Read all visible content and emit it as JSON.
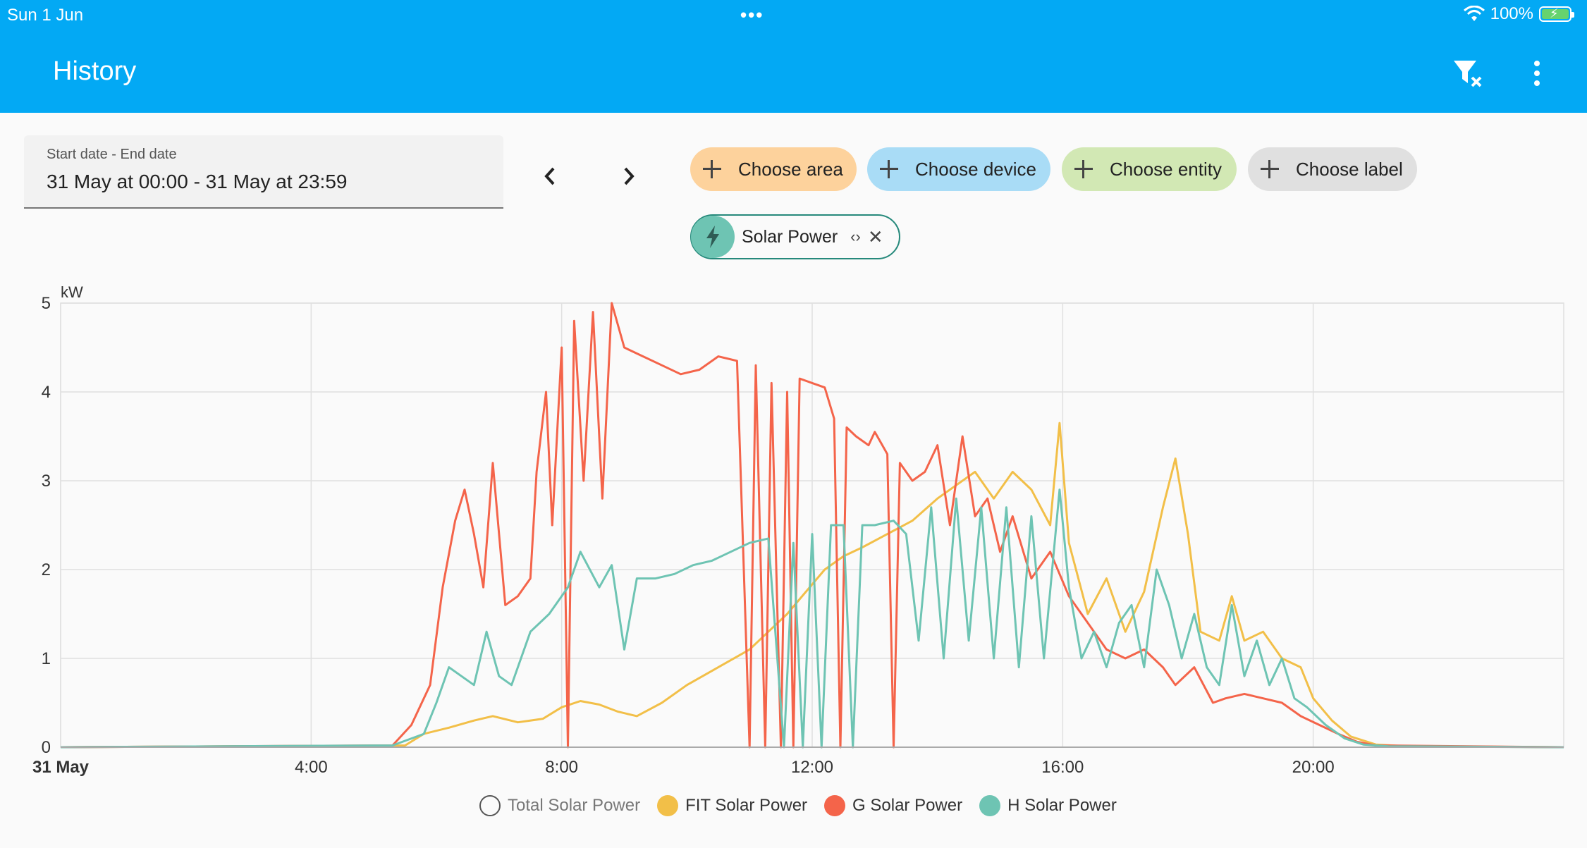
{
  "status_bar": {
    "date": "Sun 1 Jun",
    "battery_percent": "100%"
  },
  "app_bar": {
    "title": "History",
    "clear_filter_icon": "filter-remove-icon",
    "menu_icon": "dots-vertical-icon"
  },
  "date_range": {
    "label": "Start date - End date",
    "value": "31 May at 00:00 - 31 May at 23:59"
  },
  "target_pickers": [
    {
      "label": "Choose area",
      "color": "#fdd29c"
    },
    {
      "label": "Choose device",
      "color": "#a9dcf6"
    },
    {
      "label": "Choose entity",
      "color": "#d2e8b4"
    },
    {
      "label": "Choose label",
      "color": "#e0e0e0"
    }
  ],
  "selected_target": {
    "label": "Solar Power",
    "icon": "flash-icon"
  },
  "chart_data": {
    "type": "line",
    "unit": "kW",
    "ylim": [
      0,
      5
    ],
    "yticks": [
      "0",
      "1",
      "2",
      "3",
      "4",
      "5"
    ],
    "xlim_hours": [
      0,
      24
    ],
    "xticks": [
      {
        "h": 0,
        "label": "31 May"
      },
      {
        "h": 4,
        "label": "4:00"
      },
      {
        "h": 8,
        "label": "8:00"
      },
      {
        "h": 12,
        "label": "12:00"
      },
      {
        "h": 16,
        "label": "16:00"
      },
      {
        "h": 20,
        "label": "20:00"
      }
    ],
    "grid": true,
    "legend_position": "bottom",
    "series": [
      {
        "name": "Total Solar Power",
        "color": "#9e9e9e",
        "hidden": true,
        "points": []
      },
      {
        "name": "FIT Solar Power",
        "color": "#f2bf48",
        "points": [
          [
            0,
            0
          ],
          [
            5.5,
            0.02
          ],
          [
            5.8,
            0.15
          ],
          [
            6.2,
            0.22
          ],
          [
            6.6,
            0.3
          ],
          [
            6.9,
            0.35
          ],
          [
            7.3,
            0.28
          ],
          [
            7.7,
            0.32
          ],
          [
            8.0,
            0.45
          ],
          [
            8.3,
            0.52
          ],
          [
            8.6,
            0.48
          ],
          [
            8.9,
            0.4
          ],
          [
            9.2,
            0.35
          ],
          [
            9.6,
            0.5
          ],
          [
            10.0,
            0.7
          ],
          [
            10.5,
            0.9
          ],
          [
            11.0,
            1.1
          ],
          [
            11.3,
            1.3
          ],
          [
            11.6,
            1.5
          ],
          [
            11.9,
            1.75
          ],
          [
            12.2,
            2.0
          ],
          [
            12.5,
            2.15
          ],
          [
            12.8,
            2.25
          ],
          [
            13.2,
            2.4
          ],
          [
            13.6,
            2.55
          ],
          [
            14.0,
            2.8
          ],
          [
            14.3,
            2.95
          ],
          [
            14.6,
            3.1
          ],
          [
            14.9,
            2.8
          ],
          [
            15.2,
            3.1
          ],
          [
            15.5,
            2.9
          ],
          [
            15.8,
            2.5
          ],
          [
            15.95,
            3.65
          ],
          [
            16.1,
            2.3
          ],
          [
            16.4,
            1.5
          ],
          [
            16.7,
            1.9
          ],
          [
            17.0,
            1.3
          ],
          [
            17.3,
            1.75
          ],
          [
            17.6,
            2.7
          ],
          [
            17.8,
            3.25
          ],
          [
            18.0,
            2.4
          ],
          [
            18.2,
            1.3
          ],
          [
            18.5,
            1.2
          ],
          [
            18.7,
            1.7
          ],
          [
            18.9,
            1.2
          ],
          [
            19.2,
            1.3
          ],
          [
            19.5,
            1.0
          ],
          [
            19.8,
            0.9
          ],
          [
            20.0,
            0.55
          ],
          [
            20.3,
            0.3
          ],
          [
            20.6,
            0.12
          ],
          [
            21.0,
            0.03
          ],
          [
            21.5,
            0.01
          ],
          [
            24,
            0
          ]
        ]
      },
      {
        "name": "G Solar Power",
        "color": "#f4644a",
        "points": [
          [
            0,
            0
          ],
          [
            5.3,
            0.02
          ],
          [
            5.6,
            0.25
          ],
          [
            5.9,
            0.7
          ],
          [
            6.1,
            1.8
          ],
          [
            6.3,
            2.55
          ],
          [
            6.45,
            2.9
          ],
          [
            6.6,
            2.4
          ],
          [
            6.75,
            1.8
          ],
          [
            6.9,
            3.2
          ],
          [
            7.1,
            1.6
          ],
          [
            7.3,
            1.7
          ],
          [
            7.5,
            1.9
          ],
          [
            7.6,
            3.1
          ],
          [
            7.75,
            4.0
          ],
          [
            7.85,
            2.5
          ],
          [
            8.0,
            4.5
          ],
          [
            8.1,
            0.0
          ],
          [
            8.2,
            4.8
          ],
          [
            8.35,
            3.0
          ],
          [
            8.5,
            4.9
          ],
          [
            8.65,
            2.8
          ],
          [
            8.8,
            5.0
          ],
          [
            9.0,
            4.5
          ],
          [
            9.3,
            4.4
          ],
          [
            9.6,
            4.3
          ],
          [
            9.9,
            4.2
          ],
          [
            10.2,
            4.25
          ],
          [
            10.5,
            4.4
          ],
          [
            10.8,
            4.35
          ],
          [
            11.0,
            0.0
          ],
          [
            11.1,
            4.3
          ],
          [
            11.25,
            0.0
          ],
          [
            11.35,
            4.1
          ],
          [
            11.5,
            0.0
          ],
          [
            11.6,
            4.0
          ],
          [
            11.7,
            0.0
          ],
          [
            11.8,
            4.15
          ],
          [
            12.0,
            4.1
          ],
          [
            12.2,
            4.05
          ],
          [
            12.35,
            3.7
          ],
          [
            12.45,
            0.0
          ],
          [
            12.55,
            3.6
          ],
          [
            12.7,
            3.5
          ],
          [
            12.9,
            3.4
          ],
          [
            13.0,
            3.55
          ],
          [
            13.2,
            3.3
          ],
          [
            13.3,
            0.0
          ],
          [
            13.4,
            3.2
          ],
          [
            13.6,
            3.0
          ],
          [
            13.8,
            3.1
          ],
          [
            14.0,
            3.4
          ],
          [
            14.2,
            2.5
          ],
          [
            14.4,
            3.5
          ],
          [
            14.6,
            2.6
          ],
          [
            14.8,
            2.8
          ],
          [
            15.0,
            2.2
          ],
          [
            15.2,
            2.6
          ],
          [
            15.5,
            1.9
          ],
          [
            15.8,
            2.2
          ],
          [
            16.1,
            1.7
          ],
          [
            16.4,
            1.4
          ],
          [
            16.7,
            1.1
          ],
          [
            17.0,
            1.0
          ],
          [
            17.3,
            1.1
          ],
          [
            17.6,
            0.9
          ],
          [
            17.8,
            0.7
          ],
          [
            18.1,
            0.9
          ],
          [
            18.4,
            0.5
          ],
          [
            18.6,
            0.55
          ],
          [
            18.9,
            0.6
          ],
          [
            19.2,
            0.55
          ],
          [
            19.5,
            0.5
          ],
          [
            19.8,
            0.35
          ],
          [
            20.1,
            0.25
          ],
          [
            20.4,
            0.15
          ],
          [
            20.7,
            0.06
          ],
          [
            21.0,
            0.02
          ],
          [
            24,
            0
          ]
        ]
      },
      {
        "name": "H Solar Power",
        "color": "#6ec4b3",
        "points": [
          [
            0,
            0
          ],
          [
            5.3,
            0.02
          ],
          [
            5.8,
            0.15
          ],
          [
            6.0,
            0.5
          ],
          [
            6.2,
            0.9
          ],
          [
            6.4,
            0.8
          ],
          [
            6.6,
            0.7
          ],
          [
            6.8,
            1.3
          ],
          [
            7.0,
            0.8
          ],
          [
            7.2,
            0.7
          ],
          [
            7.5,
            1.3
          ],
          [
            7.8,
            1.5
          ],
          [
            8.1,
            1.8
          ],
          [
            8.3,
            2.2
          ],
          [
            8.6,
            1.8
          ],
          [
            8.8,
            2.05
          ],
          [
            9.0,
            1.1
          ],
          [
            9.2,
            1.9
          ],
          [
            9.5,
            1.9
          ],
          [
            9.8,
            1.95
          ],
          [
            10.1,
            2.05
          ],
          [
            10.4,
            2.1
          ],
          [
            10.7,
            2.2
          ],
          [
            11.0,
            2.3
          ],
          [
            11.3,
            2.35
          ],
          [
            11.55,
            0.0
          ],
          [
            11.7,
            2.3
          ],
          [
            11.85,
            0.0
          ],
          [
            12.0,
            2.4
          ],
          [
            12.15,
            0.0
          ],
          [
            12.3,
            2.5
          ],
          [
            12.5,
            2.5
          ],
          [
            12.65,
            0.0
          ],
          [
            12.8,
            2.5
          ],
          [
            13.0,
            2.5
          ],
          [
            13.3,
            2.55
          ],
          [
            13.5,
            2.4
          ],
          [
            13.7,
            1.2
          ],
          [
            13.9,
            2.7
          ],
          [
            14.1,
            1.0
          ],
          [
            14.3,
            2.8
          ],
          [
            14.5,
            1.2
          ],
          [
            14.7,
            2.7
          ],
          [
            14.9,
            1.0
          ],
          [
            15.1,
            2.7
          ],
          [
            15.3,
            0.9
          ],
          [
            15.5,
            2.6
          ],
          [
            15.7,
            1.0
          ],
          [
            15.95,
            2.9
          ],
          [
            16.1,
            1.8
          ],
          [
            16.3,
            1.0
          ],
          [
            16.5,
            1.3
          ],
          [
            16.7,
            0.9
          ],
          [
            16.9,
            1.4
          ],
          [
            17.1,
            1.6
          ],
          [
            17.3,
            0.9
          ],
          [
            17.5,
            2.0
          ],
          [
            17.7,
            1.6
          ],
          [
            17.9,
            1.0
          ],
          [
            18.1,
            1.5
          ],
          [
            18.3,
            0.9
          ],
          [
            18.5,
            0.7
          ],
          [
            18.7,
            1.6
          ],
          [
            18.9,
            0.8
          ],
          [
            19.1,
            1.2
          ],
          [
            19.3,
            0.7
          ],
          [
            19.5,
            1.0
          ],
          [
            19.7,
            0.55
          ],
          [
            19.9,
            0.45
          ],
          [
            20.2,
            0.25
          ],
          [
            20.5,
            0.1
          ],
          [
            20.8,
            0.03
          ],
          [
            21.2,
            0.01
          ],
          [
            24,
            0
          ]
        ]
      }
    ]
  }
}
